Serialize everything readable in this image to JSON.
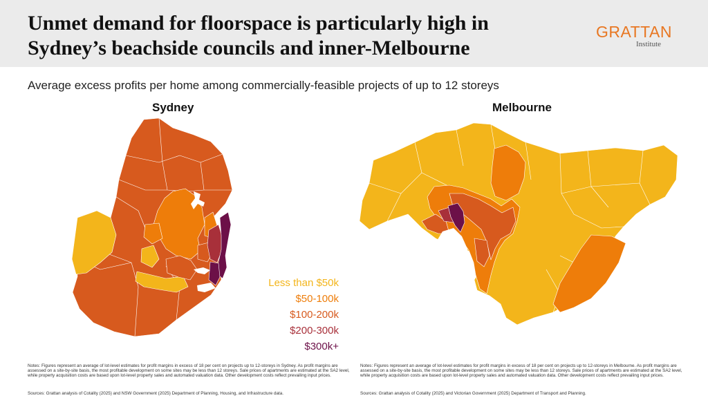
{
  "header": {
    "title_line1": "Unmet demand for floorspace is particularly high in",
    "title_line2": "Sydney’s beachside councils and inner-Melbourne",
    "logo_main": "GRATTAN",
    "logo_sub": "Institute"
  },
  "subtitle": "Average excess profits per home among commercially-feasible projects of up to 12 storeys",
  "maps": {
    "sydney": {
      "title": "Sydney"
    },
    "melbourne": {
      "title": "Melbourne"
    }
  },
  "legend": {
    "items": [
      {
        "label": "Less than $50k",
        "color": "#f3b51b"
      },
      {
        "label": "$50-100k",
        "color": "#ee7d0a"
      },
      {
        "label": "$100-200k",
        "color": "#d75a1e"
      },
      {
        "label": "$200-300k",
        "color": "#a8303a"
      },
      {
        "label": "$300k+",
        "color": "#6c1048"
      }
    ]
  },
  "notes": {
    "sydney": "Notes: Figures represent an average of lot-level estimates for profit margins in excess of 18 per cent on projects up to 12-storeys in Sydney. As profit margins are assessed on a site-by-site basis, the most profitable development on some sites may be less than 12 storeys. Sale prices of apartments are estimated at the SA2 level, while property acquisition costs are based upon lot-level property sales and automated valuation data. Other development costs reflect prevailing input prices.",
    "melbourne": "Notes: Figures represent an average of lot-level estimates for profit margins in excess of 18 per cent on projects up to 12-storeys in Melbourne. As profit margins are assessed on a site-by-site basis, the most profitable development on some sites may be less than 12 storeys. Sale prices of apartments are estimated at the SA2 level, while property acquisition costs are based upon lot-level property sales and automated valuation data. Other development costs reflect prevailing input prices."
  },
  "sources": {
    "sydney": "Sources: Grattan analysis of Cotality (2025) and NSW Government (2025) Department of Planning, Housing, and Infrastructure data.",
    "melbourne": "Sources: Grattan analysis of Cotality (2025) and Victorian Government (2025) Department of Transport and Planning."
  }
}
